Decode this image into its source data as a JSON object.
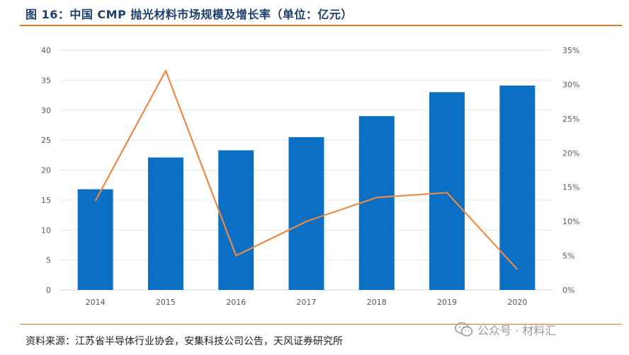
{
  "figure": {
    "title": "图 16：中国 CMP 抛光材料市场规模及增长率（单位：亿元）",
    "source": "资料来源：江苏省半导体行业协会，安集科技公司公告，天风证券研究所",
    "watermark": "公众号 · 材料汇"
  },
  "colors": {
    "bar": "#0b6fc3",
    "line": "#ec8a45",
    "rule": "#e07b2e",
    "title": "#1f3f6e"
  },
  "chart_data": {
    "type": "bar",
    "categories": [
      "2014",
      "2015",
      "2016",
      "2017",
      "2018",
      "2019",
      "2020"
    ],
    "series": [
      {
        "values": [
          16.8,
          22.1,
          23.3,
          25.5,
          29.0,
          33.0,
          34.1
        ],
        "type": "bar",
        "axis": "left"
      },
      {
        "values": [
          13.0,
          32.0,
          5.0,
          10.0,
          13.5,
          14.2,
          3.0
        ],
        "type": "line",
        "axis": "right"
      }
    ],
    "y_left": {
      "min": 0,
      "max": 40,
      "ticks": [
        "0",
        "5",
        "10",
        "15",
        "20",
        "25",
        "30",
        "35",
        "40"
      ]
    },
    "y_right": {
      "min": 0,
      "max": 35,
      "ticks": [
        "0%",
        "5%",
        "10%",
        "15%",
        "20%",
        "25%",
        "30%",
        "35%"
      ]
    },
    "grid": true,
    "legend": "none"
  }
}
